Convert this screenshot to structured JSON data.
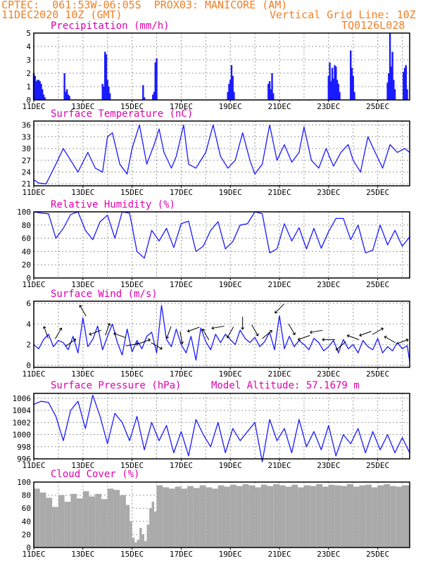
{
  "header": {
    "left_line1": "CPTEC:  061:53W-06:05S  PROX03: MANICORE (AM)",
    "left_line2": "11DEC2020 10Z (GMT)",
    "right_line2": "Vertical Grid Line: 10Z",
    "right_line3": "TQ0126L028"
  },
  "colors": {
    "header": "#f08028",
    "panel_title": "#e000b0",
    "series": "#1a1aff",
    "cloud": "#aaaaaa",
    "grid": "#999999"
  },
  "chart_data": [
    {
      "type": "bar",
      "title": "Precipitation (mm/h)",
      "xlabel": "",
      "ylabel": "",
      "x_tick_labels": [
        "11DEC",
        "13DEC",
        "15DEC",
        "17DEC",
        "19DEC",
        "21DEC",
        "23DEC",
        "25DEC"
      ],
      "x_tick_days": [
        0,
        2,
        4,
        6,
        8,
        10,
        12,
        14
      ],
      "xlim_days": [
        0,
        15.3
      ],
      "y_ticks": [
        0,
        1,
        2,
        3,
        4,
        5
      ],
      "ylim": [
        0,
        5
      ],
      "grid": true,
      "x_days": [
        0.0,
        0.05,
        0.1,
        0.15,
        0.2,
        0.25,
        0.3,
        0.35,
        0.4,
        0.45,
        1.25,
        1.3,
        1.35,
        1.4,
        1.45,
        2.8,
        2.85,
        2.9,
        2.95,
        3.0,
        3.05,
        3.1,
        4.45,
        4.5,
        4.85,
        4.9,
        4.95,
        5.0,
        7.9,
        7.95,
        8.0,
        8.05,
        8.1,
        8.15,
        9.55,
        9.6,
        9.65,
        9.7,
        9.75,
        12.0,
        12.05,
        12.1,
        12.15,
        12.2,
        12.25,
        12.3,
        12.35,
        12.4,
        12.45,
        12.9,
        12.95,
        13.0,
        13.05,
        14.4,
        14.45,
        14.5,
        14.55,
        14.6,
        14.65,
        14.7,
        15.05,
        15.1,
        15.15,
        15.2
      ],
      "values": [
        2.0,
        1.8,
        1.4,
        1.5,
        1.5,
        1.4,
        1.2,
        0.8,
        0.4,
        0.2,
        2.0,
        0.6,
        0.8,
        0.4,
        0.3,
        1.2,
        1.0,
        3.6,
        3.4,
        1.5,
        1.0,
        0.5,
        1.1,
        0.2,
        0.4,
        0.6,
        2.8,
        3.1,
        0.6,
        1.2,
        1.5,
        2.6,
        1.8,
        0.6,
        1.2,
        1.4,
        0.8,
        2.0,
        0.5,
        1.8,
        2.8,
        1.4,
        2.4,
        1.6,
        2.6,
        2.5,
        1.5,
        1.2,
        0.6,
        3.7,
        2.4,
        1.8,
        0.6,
        1.3,
        2.0,
        5.0,
        2.5,
        3.6,
        1.5,
        0.8,
        2.1,
        2.4,
        2.6,
        0.8
      ]
    },
    {
      "type": "line",
      "title": "Surface Temperature (nC)",
      "xlabel": "",
      "ylabel": "",
      "x_tick_labels": [
        "11DEC",
        "13DEC",
        "15DEC",
        "17DEC",
        "19DEC",
        "21DEC",
        "23DEC",
        "25DEC"
      ],
      "x_tick_days": [
        0,
        2,
        4,
        6,
        8,
        10,
        12,
        14
      ],
      "xlim_days": [
        0,
        15.3
      ],
      "y_ticks": [
        21,
        24,
        27,
        30,
        33,
        36
      ],
      "ylim": [
        20.5,
        37
      ],
      "grid": true,
      "x_days": [
        0.0,
        0.2,
        0.5,
        0.9,
        1.2,
        1.4,
        1.8,
        2.0,
        2.2,
        2.5,
        2.8,
        3.0,
        3.2,
        3.5,
        3.8,
        4.0,
        4.3,
        4.6,
        4.9,
        5.1,
        5.3,
        5.6,
        5.8,
        6.1,
        6.3,
        6.6,
        7.0,
        7.3,
        7.6,
        7.9,
        8.2,
        8.5,
        8.8,
        9.0,
        9.3,
        9.6,
        9.9,
        10.2,
        10.5,
        10.8,
        11.0,
        11.3,
        11.6,
        11.9,
        12.2,
        12.5,
        12.8,
        13.0,
        13.3,
        13.6,
        13.9,
        14.2,
        14.5,
        14.8,
        15.1,
        15.3
      ],
      "values": [
        22.0,
        21.2,
        21.0,
        26.0,
        30.0,
        28.0,
        24.0,
        26.5,
        29.0,
        25.0,
        24.0,
        33.0,
        34.0,
        26.0,
        23.5,
        30.0,
        36.0,
        26.0,
        31.0,
        35.0,
        29.0,
        25.0,
        28.0,
        36.0,
        26.0,
        25.0,
        29.0,
        36.0,
        28.0,
        25.0,
        27.0,
        34.0,
        27.0,
        23.5,
        26.0,
        36.0,
        27.0,
        31.0,
        26.5,
        29.0,
        35.5,
        27.0,
        25.0,
        30.0,
        25.5,
        29.0,
        31.0,
        27.0,
        24.0,
        33.0,
        29.0,
        25.0,
        31.0,
        29.0,
        30.0,
        29.0
      ]
    },
    {
      "type": "line",
      "title": "Relative Humidity (%)",
      "xlabel": "",
      "ylabel": "",
      "x_tick_labels": [
        "11DEC",
        "13DEC",
        "15DEC",
        "17DEC",
        "19DEC",
        "21DEC",
        "23DEC",
        "25DEC"
      ],
      "x_tick_days": [
        0,
        2,
        4,
        6,
        8,
        10,
        12,
        14
      ],
      "xlim_days": [
        0,
        15.3
      ],
      "y_ticks": [
        0,
        20,
        40,
        60,
        80,
        100
      ],
      "ylim": [
        0,
        100
      ],
      "grid": true,
      "x_days": [
        0.0,
        0.3,
        0.6,
        0.9,
        1.2,
        1.5,
        1.8,
        2.1,
        2.4,
        2.7,
        3.0,
        3.3,
        3.6,
        3.9,
        4.2,
        4.5,
        4.8,
        5.1,
        5.4,
        5.7,
        6.0,
        6.3,
        6.6,
        6.9,
        7.2,
        7.5,
        7.8,
        8.1,
        8.4,
        8.7,
        9.0,
        9.3,
        9.6,
        9.9,
        10.2,
        10.5,
        10.8,
        11.1,
        11.4,
        11.7,
        12.0,
        12.3,
        12.6,
        12.9,
        13.2,
        13.5,
        13.8,
        14.1,
        14.4,
        14.7,
        15.0,
        15.3
      ],
      "values": [
        100,
        98,
        97,
        60,
        75,
        96,
        100,
        72,
        58,
        85,
        95,
        60,
        100,
        98,
        40,
        30,
        72,
        56,
        75,
        46,
        82,
        86,
        40,
        48,
        72,
        85,
        44,
        55,
        80,
        82,
        100,
        97,
        38,
        44,
        82,
        56,
        76,
        44,
        75,
        45,
        70,
        90,
        90,
        58,
        80,
        38,
        42,
        80,
        50,
        72,
        48,
        62
      ],
      "annotations": []
    },
    {
      "type": "line",
      "title": "Surface Wind (m/s)",
      "xlabel": "",
      "ylabel": "",
      "x_tick_labels": [
        "11DEC",
        "13DEC",
        "15DEC",
        "17DEC",
        "19DEC",
        "21DEC",
        "23DEC",
        "25DEC"
      ],
      "x_tick_days": [
        0,
        2,
        4,
        6,
        8,
        10,
        12,
        14
      ],
      "xlim_days": [
        0,
        15.3
      ],
      "y_ticks": [
        0,
        2,
        4,
        6
      ],
      "ylim": [
        -0.2,
        6.2
      ],
      "grid": true,
      "x_days": [
        0.0,
        0.2,
        0.4,
        0.6,
        0.8,
        1.0,
        1.2,
        1.4,
        1.6,
        1.8,
        2.0,
        2.2,
        2.4,
        2.6,
        2.8,
        3.0,
        3.2,
        3.4,
        3.6,
        3.8,
        4.0,
        4.2,
        4.4,
        4.6,
        4.8,
        5.0,
        5.2,
        5.4,
        5.6,
        5.8,
        6.0,
        6.2,
        6.4,
        6.6,
        6.8,
        7.0,
        7.2,
        7.4,
        7.6,
        7.8,
        8.0,
        8.2,
        8.4,
        8.6,
        8.8,
        9.0,
        9.2,
        9.4,
        9.6,
        9.8,
        10.0,
        10.2,
        10.4,
        10.6,
        10.8,
        11.0,
        11.2,
        11.4,
        11.6,
        11.8,
        12.0,
        12.2,
        12.4,
        12.6,
        12.8,
        13.0,
        13.2,
        13.4,
        13.6,
        13.8,
        14.0,
        14.2,
        14.4,
        14.6,
        14.8,
        15.0,
        15.2,
        15.3
      ],
      "values": [
        2.0,
        1.6,
        2.5,
        3.0,
        1.8,
        2.4,
        2.2,
        1.5,
        2.8,
        1.2,
        4.6,
        1.8,
        2.5,
        3.8,
        1.5,
        2.8,
        4.0,
        2.2,
        1.0,
        3.5,
        1.3,
        2.4,
        1.6,
        2.8,
        3.2,
        1.2,
        5.8,
        2.5,
        1.8,
        3.5,
        2.0,
        1.2,
        2.8,
        0.5,
        3.6,
        2.3,
        1.5,
        3.0,
        2.2,
        3.0,
        2.5,
        2.0,
        3.4,
        2.6,
        2.2,
        2.7,
        1.8,
        2.3,
        3.2,
        1.5,
        4.8,
        1.6,
        2.8,
        1.8,
        2.4,
        2.0,
        1.5,
        2.6,
        2.2,
        1.4,
        1.8,
        2.4,
        1.2,
        2.5,
        1.6,
        2.0,
        1.2,
        2.4,
        1.8,
        1.5,
        2.6,
        1.2,
        1.8,
        1.4,
        2.2,
        1.6,
        1.9,
        0.4
      ],
      "wind_arrow_days": [
        0.5,
        1.0,
        1.5,
        2.0,
        2.5,
        3.0,
        3.5,
        4.0,
        4.5,
        5.0,
        5.5,
        6.0,
        6.5,
        7.0,
        7.5,
        8.0,
        8.5,
        9.0,
        9.5,
        10.0,
        10.5,
        11.0,
        11.5,
        12.0,
        12.5,
        13.0,
        13.5,
        14.0,
        14.5,
        15.0
      ],
      "wind_arrow_dir_deg": [
        110,
        60,
        35,
        120,
        200,
        70,
        160,
        10,
        20,
        330,
        250,
        280,
        200,
        120,
        190,
        240,
        270,
        300,
        40,
        225,
        300,
        200,
        190,
        180,
        220,
        160,
        200,
        30,
        150,
        20
      ]
    },
    {
      "type": "line",
      "title": "Surface Pressure (hPa)",
      "annotation": "Model Altitude: 57.1679 m",
      "xlabel": "",
      "ylabel": "",
      "x_tick_labels": [
        "11DEC",
        "13DEC",
        "15DEC",
        "17DEC",
        "19DEC",
        "21DEC",
        "23DEC",
        "25DEC"
      ],
      "x_tick_days": [
        0,
        2,
        4,
        6,
        8,
        10,
        12,
        14
      ],
      "xlim_days": [
        0,
        15.3
      ],
      "y_ticks": [
        996,
        998,
        1000,
        1002,
        1004,
        1006
      ],
      "ylim": [
        996,
        1006.8
      ],
      "grid": true,
      "x_days": [
        0.0,
        0.3,
        0.6,
        0.9,
        1.2,
        1.5,
        1.8,
        2.1,
        2.4,
        2.7,
        3.0,
        3.3,
        3.6,
        3.9,
        4.2,
        4.5,
        4.8,
        5.1,
        5.4,
        5.7,
        6.0,
        6.3,
        6.6,
        6.9,
        7.2,
        7.5,
        7.8,
        8.1,
        8.4,
        8.7,
        9.0,
        9.3,
        9.6,
        9.9,
        10.2,
        10.5,
        10.8,
        11.1,
        11.4,
        11.7,
        12.0,
        12.3,
        12.6,
        12.9,
        13.2,
        13.5,
        13.8,
        14.1,
        14.4,
        14.7,
        15.0,
        15.3
      ],
      "values": [
        1005.0,
        1005.5,
        1005.3,
        1003.0,
        999.0,
        1004.0,
        1005.5,
        1001.0,
        1006.5,
        1003.0,
        998.5,
        1003.5,
        1002.0,
        999.0,
        1003.0,
        997.5,
        1002.0,
        999.0,
        1001.5,
        997.0,
        1000.5,
        996.5,
        1002.5,
        1000.0,
        998.0,
        1002.0,
        997.0,
        1001.0,
        999.0,
        1000.5,
        1002.0,
        995.5,
        1002.5,
        999.0,
        1001.0,
        997.0,
        1002.5,
        998.0,
        1000.5,
        997.5,
        1001.5,
        996.5,
        1000.0,
        998.5,
        1001.0,
        997.0,
        1000.5,
        997.5,
        1000.0,
        997.0,
        999.5,
        997.0
      ]
    },
    {
      "type": "area",
      "title": "Cloud Cover (%)",
      "xlabel": "",
      "ylabel": "",
      "x_tick_labels": [
        "11DEC",
        "13DEC",
        "15DEC",
        "17DEC",
        "19DEC",
        "21DEC",
        "23DEC",
        "25DEC"
      ],
      "x_tick_days": [
        0,
        2,
        4,
        6,
        8,
        10,
        12,
        14
      ],
      "xlim_days": [
        0,
        15.3
      ],
      "y_ticks": [
        0,
        20,
        40,
        60,
        80,
        100
      ],
      "ylim": [
        0,
        100
      ],
      "grid": true,
      "x_days": [
        0.0,
        0.25,
        0.5,
        0.75,
        1.0,
        1.25,
        1.5,
        1.75,
        2.0,
        2.25,
        2.5,
        2.75,
        3.0,
        3.25,
        3.5,
        3.75,
        3.9,
        4.0,
        4.1,
        4.2,
        4.3,
        4.4,
        4.5,
        4.6,
        4.7,
        4.8,
        4.9,
        5.0,
        5.25,
        5.5,
        5.75,
        6.0,
        6.25,
        6.5,
        6.75,
        7.0,
        7.25,
        7.5,
        7.75,
        8.0,
        8.25,
        8.5,
        8.75,
        9.0,
        9.25,
        9.5,
        9.75,
        10.0,
        10.25,
        10.5,
        10.75,
        11.0,
        11.25,
        11.5,
        11.75,
        12.0,
        12.25,
        12.5,
        12.75,
        13.0,
        13.25,
        13.5,
        13.75,
        14.0,
        14.25,
        14.5,
        14.75,
        15.0,
        15.3
      ],
      "values": [
        90,
        84,
        76,
        62,
        80,
        70,
        82,
        75,
        86,
        78,
        82,
        74,
        90,
        88,
        80,
        65,
        40,
        15,
        8,
        12,
        30,
        20,
        10,
        35,
        60,
        70,
        55,
        95,
        92,
        90,
        93,
        90,
        94,
        91,
        95,
        92,
        90,
        95,
        93,
        96,
        94,
        97,
        95,
        92,
        96,
        94,
        97,
        95,
        93,
        96,
        92,
        95,
        94,
        97,
        93,
        96,
        95,
        94,
        97,
        93,
        95,
        96,
        92,
        95,
        97,
        94,
        93,
        95,
        96
      ]
    }
  ]
}
